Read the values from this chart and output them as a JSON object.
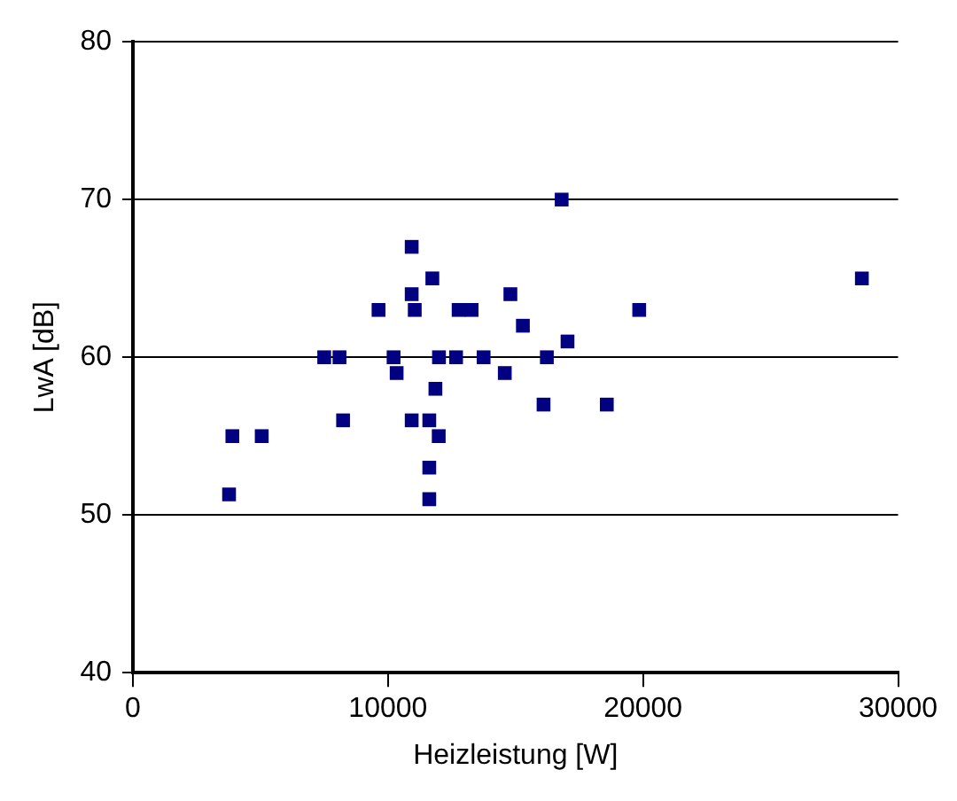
{
  "chart_data": {
    "type": "scatter",
    "xlabel": "Heizleistung [W]",
    "ylabel": "LwA [dB]",
    "xlim": [
      0,
      30000
    ],
    "xticks": [
      0,
      10000,
      20000,
      30000
    ],
    "ylim": [
      40,
      80
    ],
    "yticks": [
      40,
      50,
      60,
      70,
      80
    ],
    "grid": "y",
    "legend": false,
    "marker": "square",
    "series": [
      {
        "color": "#000080",
        "x": [
          3900,
          5050,
          3770,
          7500,
          8100,
          8240,
          9630,
          10220,
          10340,
          10930,
          11050,
          10930,
          11620,
          11740,
          11990,
          11620,
          11620,
          11860,
          12000,
          12670,
          12770,
          13280,
          13750,
          14800,
          14580,
          15290,
          16230,
          16100,
          17040,
          18580,
          19850,
          28580,
          10930,
          16810
        ],
        "values": [
          55,
          55,
          51.3,
          60,
          60,
          56,
          63,
          60,
          59,
          64,
          63,
          56,
          56,
          65,
          55,
          53,
          51,
          58,
          60,
          60,
          63,
          63,
          60,
          64,
          59,
          62,
          60,
          57,
          61,
          57,
          63,
          65,
          67,
          70
        ]
      }
    ]
  }
}
